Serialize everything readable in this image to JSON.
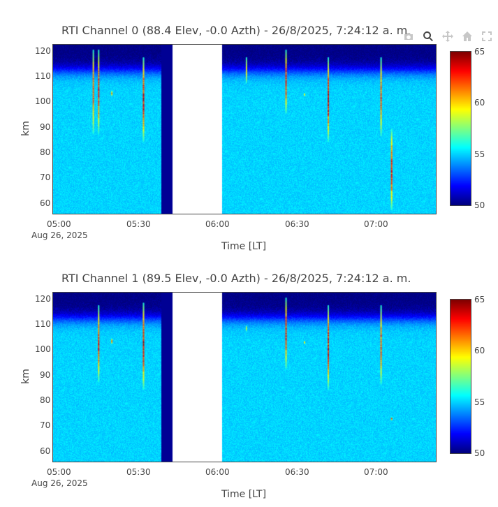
{
  "modebar": {
    "icons": [
      "camera-icon",
      "zoom-icon",
      "pan-icon",
      "home-icon",
      "autoscale-icon"
    ]
  },
  "panels": [
    {
      "title": "RTI  Channel 0 (88.4 Elev,  -0.0 Azth) - 26/8/2025, 7:24:12 a. m.",
      "xlabel": "Time [LT]",
      "ylabel": "km",
      "date_label": "Aug 26, 2025",
      "xticks": [
        "05:00",
        "05:30",
        "06:00",
        "06:30",
        "07:00"
      ],
      "yticks": [
        "60",
        "70",
        "80",
        "90",
        "100",
        "110",
        "120"
      ],
      "cbar_ticks": [
        "65",
        "60",
        "55",
        "50"
      ]
    },
    {
      "title": "RTI  Channel 1 (89.5 Elev,  -0.0 Azth) - 26/8/2025, 7:24:12 a. m.",
      "xlabel": "Time [LT]",
      "ylabel": "km",
      "date_label": "Aug 26, 2025",
      "xticks": [
        "05:00",
        "05:30",
        "06:00",
        "06:30",
        "07:00"
      ],
      "yticks": [
        "60",
        "70",
        "80",
        "90",
        "100",
        "110",
        "120"
      ],
      "cbar_ticks": [
        "65",
        "60",
        "55",
        "50"
      ]
    }
  ],
  "chart_data": [
    {
      "type": "heatmap",
      "title": "RTI  Channel 0 (88.4 Elev,  -0.0 Azth) - 26/8/2025, 7:24:12 a. m.",
      "xlabel": "Time [LT]",
      "ylabel": "km",
      "xlim": [
        "04:57",
        "07:22"
      ],
      "ylim": [
        56.5,
        123
      ],
      "zlim": [
        50,
        65
      ],
      "colorscale": "jet",
      "background_db": 55,
      "upper_layer_db": 50,
      "upper_layer_km": 113,
      "data_gap": [
        "05:42",
        "06:01"
      ],
      "low_block": [
        "05:38",
        "05:42"
      ],
      "streaks": [
        {
          "t": "05:12",
          "km_top": 121,
          "km_bottom": 88,
          "peak_db": 63
        },
        {
          "t": "05:14",
          "km_top": 121,
          "km_bottom": 88,
          "peak_db": 64
        },
        {
          "t": "05:19",
          "km_top": 105,
          "km_bottom": 103,
          "peak_db": 62
        },
        {
          "t": "05:31",
          "km_top": 118,
          "km_bottom": 85,
          "peak_db": 65
        },
        {
          "t": "06:10",
          "km_top": 118,
          "km_bottom": 108,
          "peak_db": 60
        },
        {
          "t": "06:25",
          "km_top": 121,
          "km_bottom": 96,
          "peak_db": 64
        },
        {
          "t": "06:32",
          "km_top": 104,
          "km_bottom": 103,
          "peak_db": 61
        },
        {
          "t": "06:41",
          "km_top": 118,
          "km_bottom": 85,
          "peak_db": 65
        },
        {
          "t": "07:01",
          "km_top": 118,
          "km_bottom": 87,
          "peak_db": 63
        },
        {
          "t": "07:05",
          "km_top": 90,
          "km_bottom": 58,
          "peak_db": 64
        }
      ]
    },
    {
      "type": "heatmap",
      "title": "RTI  Channel 1 (89.5 Elev,  -0.0 Azth) - 26/8/2025, 7:24:12 a. m.",
      "xlabel": "Time [LT]",
      "ylabel": "km",
      "xlim": [
        "04:57",
        "07:22"
      ],
      "ylim": [
        56.5,
        123
      ],
      "zlim": [
        50,
        65
      ],
      "colorscale": "jet",
      "background_db": 55,
      "upper_layer_db": 50,
      "upper_layer_km": 113,
      "data_gap": [
        "05:42",
        "06:01"
      ],
      "low_block": [
        "05:38",
        "05:42"
      ],
      "streaks": [
        {
          "t": "05:14",
          "km_top": 118,
          "km_bottom": 88,
          "peak_db": 64
        },
        {
          "t": "05:19",
          "km_top": 105,
          "km_bottom": 103,
          "peak_db": 62
        },
        {
          "t": "05:31",
          "km_top": 119,
          "km_bottom": 85,
          "peak_db": 65
        },
        {
          "t": "06:10",
          "km_top": 110,
          "km_bottom": 108,
          "peak_db": 59
        },
        {
          "t": "06:25",
          "km_top": 121,
          "km_bottom": 93,
          "peak_db": 64
        },
        {
          "t": "06:32",
          "km_top": 104,
          "km_bottom": 103,
          "peak_db": 61
        },
        {
          "t": "06:41",
          "km_top": 118,
          "km_bottom": 85,
          "peak_db": 65
        },
        {
          "t": "07:01",
          "km_top": 118,
          "km_bottom": 87,
          "peak_db": 63
        },
        {
          "t": "07:05",
          "km_top": 74,
          "km_bottom": 73,
          "peak_db": 64
        }
      ]
    }
  ]
}
